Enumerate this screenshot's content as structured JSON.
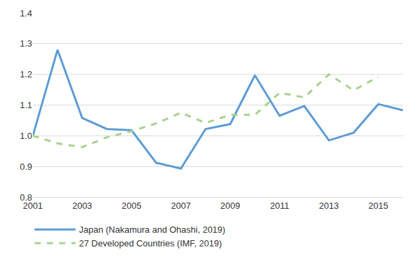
{
  "chart_data": {
    "type": "line",
    "x": [
      2001,
      2002,
      2003,
      2004,
      2005,
      2006,
      2007,
      2008,
      2009,
      2010,
      2011,
      2012,
      2013,
      2014,
      2015,
      2016
    ],
    "series": [
      {
        "name": "Japan (Nakamura and Ohashi, 2019)",
        "color": "#5b9bd5",
        "line_style": "solid",
        "values": [
          1.0,
          1.28,
          1.058,
          1.022,
          1.018,
          0.912,
          0.893,
          1.022,
          1.038,
          1.197,
          1.065,
          1.097,
          0.985,
          1.01,
          1.103,
          1.083
        ]
      },
      {
        "name": "27 Developed Countries (IMF, 2019)",
        "color": "#a9d18e",
        "line_style": "dash",
        "values": [
          1.0,
          0.975,
          0.963,
          0.995,
          1.015,
          1.04,
          1.075,
          1.042,
          1.068,
          1.068,
          1.14,
          1.125,
          1.2,
          1.148,
          1.192,
          null
        ]
      }
    ],
    "xlim": [
      2001,
      2016
    ],
    "xticks": [
      2001,
      2003,
      2005,
      2007,
      2009,
      2011,
      2013,
      2015
    ],
    "ylim": [
      0.8,
      1.4
    ],
    "yticks": [
      0.8,
      0.9,
      {
        "value": 1,
        "label": "1.0"
      },
      1.1,
      1.2,
      1.3,
      1.4
    ],
    "grid": true,
    "legend": "bottom"
  }
}
